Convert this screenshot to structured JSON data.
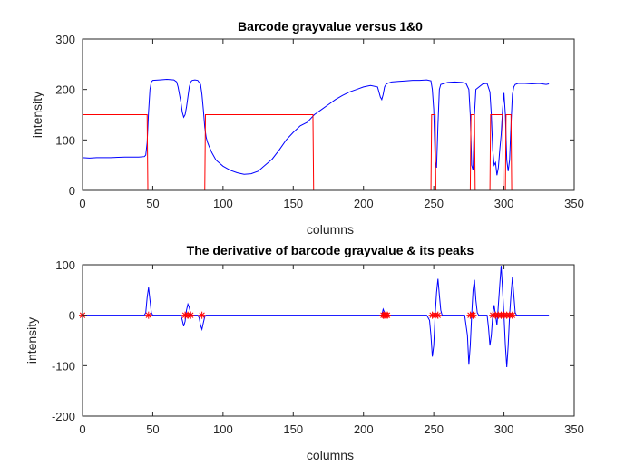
{
  "chart_data": [
    {
      "type": "line",
      "title": "Barcode grayvalue versus 1&0",
      "xlabel": "columns",
      "ylabel": "intensity",
      "xlim": [
        0,
        350
      ],
      "ylim": [
        0,
        300
      ],
      "xticks": [
        0,
        50,
        100,
        150,
        200,
        250,
        300,
        350
      ],
      "yticks": [
        0,
        100,
        200,
        300
      ],
      "grid": false,
      "colors": {
        "grayvalue": "#0000ff",
        "binary": "#ff0000"
      },
      "series": [
        {
          "key": "grayvalue",
          "color": "#0000ff",
          "x": [
            0,
            5,
            10,
            20,
            30,
            40,
            44,
            45,
            46,
            47,
            48,
            49,
            50,
            55,
            60,
            65,
            67,
            68,
            70,
            71,
            72,
            73,
            74,
            75,
            76,
            77,
            78,
            80,
            82,
            84,
            85,
            86,
            87,
            88,
            89,
            90,
            92,
            95,
            100,
            105,
            110,
            115,
            120,
            125,
            130,
            135,
            140,
            145,
            150,
            155,
            160,
            165,
            170,
            175,
            180,
            185,
            190,
            195,
            200,
            205,
            210,
            212,
            213,
            214,
            215,
            216,
            217,
            218,
            220,
            225,
            230,
            235,
            240,
            245,
            248,
            249,
            250,
            251,
            252,
            253,
            254,
            255,
            260,
            265,
            270,
            273,
            275,
            276,
            277,
            278,
            279,
            280,
            285,
            288,
            290,
            291,
            292,
            293,
            294,
            295,
            296,
            297,
            298,
            299,
            300,
            301,
            302,
            303,
            304,
            305,
            306,
            307,
            308,
            310,
            315,
            320,
            325,
            330,
            332
          ],
          "y": [
            65,
            64,
            65,
            65,
            66,
            66,
            67,
            70,
            95,
            155,
            200,
            215,
            218,
            219,
            220,
            219,
            215,
            205,
            175,
            155,
            145,
            150,
            165,
            185,
            205,
            215,
            218,
            219,
            218,
            210,
            190,
            160,
            125,
            105,
            95,
            88,
            75,
            60,
            48,
            40,
            35,
            32,
            33,
            38,
            50,
            62,
            80,
            100,
            115,
            128,
            135,
            150,
            160,
            170,
            180,
            188,
            195,
            200,
            205,
            208,
            205,
            185,
            180,
            190,
            205,
            210,
            212,
            213,
            215,
            216,
            217,
            218,
            218,
            219,
            217,
            200,
            160,
            60,
            45,
            130,
            200,
            210,
            214,
            215,
            214,
            212,
            200,
            150,
            50,
            40,
            150,
            200,
            211,
            212,
            195,
            150,
            80,
            50,
            55,
            30,
            45,
            80,
            110,
            160,
            193,
            150,
            60,
            38,
            60,
            130,
            190,
            205,
            210,
            212,
            212,
            211,
            212,
            210,
            211
          ]
        },
        {
          "key": "binary",
          "color": "#ff0000",
          "x": [
            0,
            46,
            46.5,
            87,
            87.5,
            164,
            164.5,
            248,
            248.5,
            251,
            251.5,
            276,
            276.5,
            279,
            279.5,
            290,
            290.5,
            299,
            299.5,
            301,
            301.5,
            305,
            305.5,
            307,
            307.5,
            332
          ],
          "y": [
            150,
            150,
            0,
            0,
            150,
            150,
            0,
            0,
            150,
            150,
            0,
            0,
            150,
            150,
            0,
            0,
            150,
            150,
            0,
            0,
            150,
            150,
            0,
            0,
            0,
            0
          ]
        }
      ]
    },
    {
      "type": "line",
      "title": "The derivative of barcode grayvalue & its peaks",
      "xlabel": "columns",
      "ylabel": "intensity",
      "xlim": [
        0,
        350
      ],
      "ylim": [
        -200,
        100
      ],
      "xticks": [
        0,
        50,
        100,
        150,
        200,
        250,
        300,
        350
      ],
      "yticks": [
        -200,
        -100,
        0,
        100
      ],
      "grid": false,
      "colors": {
        "derivative": "#0000ff",
        "peaks": "#ff0000"
      },
      "series": [
        {
          "key": "derivative",
          "color": "#0000ff",
          "x": [
            0,
            44,
            45,
            46,
            47,
            48,
            49,
            50,
            70,
            71,
            72,
            73,
            74,
            75,
            76,
            77,
            78,
            82,
            83,
            84,
            85,
            86,
            87,
            88,
            210,
            213,
            214,
            215,
            216,
            217,
            245,
            247,
            248,
            249,
            250,
            251,
            252,
            253,
            254,
            255,
            256,
            272,
            274,
            275,
            276,
            277,
            278,
            279,
            280,
            281,
            282,
            288,
            289,
            290,
            291,
            292,
            293,
            294,
            295,
            296,
            297,
            298,
            299,
            300,
            301,
            302,
            303,
            304,
            305,
            306,
            307,
            308,
            309,
            310,
            332
          ],
          "y": [
            0,
            0,
            5,
            35,
            55,
            30,
            5,
            0,
            0,
            -10,
            -22,
            -12,
            10,
            22,
            15,
            3,
            0,
            0,
            -5,
            -20,
            -28,
            -15,
            -3,
            0,
            0,
            0,
            12,
            5,
            -5,
            0,
            0,
            -10,
            -40,
            -82,
            -60,
            0,
            45,
            72,
            40,
            10,
            0,
            0,
            -40,
            -98,
            -60,
            0,
            50,
            70,
            30,
            5,
            0,
            0,
            -25,
            -60,
            -40,
            0,
            20,
            0,
            -20,
            20,
            60,
            98,
            50,
            0,
            -60,
            -103,
            -60,
            0,
            40,
            75,
            40,
            5,
            0,
            0,
            0
          ]
        },
        {
          "key": "peaks",
          "color": "#ff0000",
          "marker": "*",
          "x": [
            0,
            47,
            73,
            75,
            77,
            85,
            214,
            215,
            216,
            217,
            249,
            251,
            253,
            276,
            278,
            292,
            294,
            296,
            298,
            300,
            302,
            304,
            306
          ],
          "y": [
            0,
            0,
            0,
            0,
            0,
            0,
            0,
            0,
            0,
            0,
            0,
            0,
            0,
            0,
            0,
            0,
            0,
            0,
            0,
            0,
            0,
            0,
            0
          ]
        }
      ]
    }
  ]
}
